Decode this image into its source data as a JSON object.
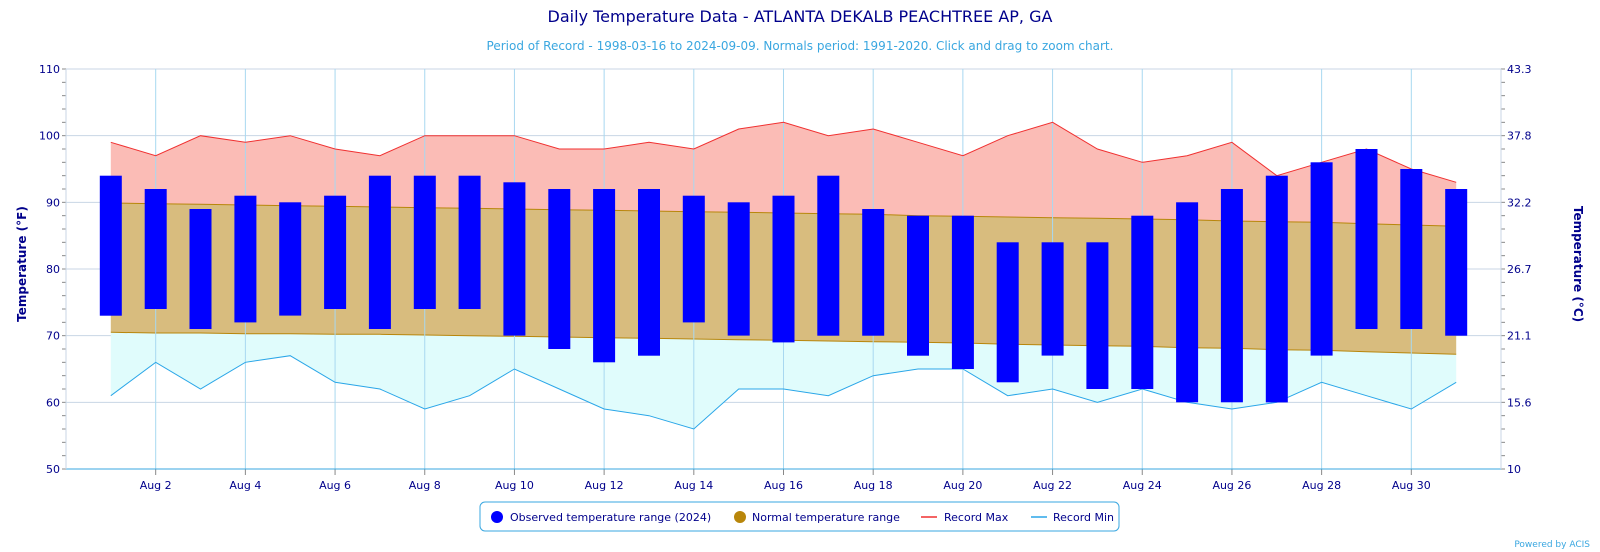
{
  "title": "Daily Temperature Data - ATLANTA DEKALB PEACHTREE AP, GA",
  "subtitle": "Period of Record - 1998-03-16 to 2024-09-09. Normals period: 1991-2020. Click and drag to zoom chart.",
  "credit": "Powered by ACIS",
  "colors": {
    "observed": "#0000ff",
    "normal_fill": "#d8bc7e",
    "normal_line": "#b8860b",
    "record_max_fill": "#fbbcb6",
    "record_max_line": "#f03030",
    "record_min_fill": "#e0fcfc",
    "record_min_line": "#2aa6e8",
    "legend_normal_dot": "#b8860b"
  },
  "chart_data": {
    "type": "bar",
    "x": [
      1,
      2,
      3,
      4,
      5,
      6,
      7,
      8,
      9,
      10,
      11,
      12,
      13,
      14,
      15,
      16,
      17,
      18,
      19,
      20,
      21,
      22,
      23,
      24,
      25,
      26,
      27,
      28,
      29,
      30,
      31
    ],
    "x_tick_labels": [
      "Aug 2",
      "Aug 4",
      "Aug 6",
      "Aug 8",
      "Aug 10",
      "Aug 12",
      "Aug 14",
      "Aug 16",
      "Aug 18",
      "Aug 20",
      "Aug 22",
      "Aug 24",
      "Aug 26",
      "Aug 28",
      "Aug 30"
    ],
    "x_tick_days": [
      2,
      4,
      6,
      8,
      10,
      12,
      14,
      16,
      18,
      20,
      22,
      24,
      26,
      28,
      30
    ],
    "xlim": [
      0,
      32
    ],
    "ylabel": "Temperature (°F)",
    "ylabel_right": "Temperature (°C)",
    "ylim": [
      50,
      110
    ],
    "y_ticks": [
      50,
      60,
      70,
      80,
      90,
      100,
      110
    ],
    "y_right_ticks": [
      "10",
      "15.6",
      "21.1",
      "26.7",
      "32.2",
      "37.8",
      "43.3"
    ],
    "grid": true,
    "legend_position": "bottom-center",
    "series": [
      {
        "name": "Observed temperature range (2024)",
        "type": "columnrange",
        "low": [
          73,
          74,
          71,
          72,
          73,
          74,
          71,
          74,
          74,
          70,
          68,
          66,
          67,
          72,
          70,
          69,
          70,
          70,
          67,
          65,
          63,
          67,
          62,
          62,
          60,
          60,
          60,
          67,
          71,
          71,
          70
        ],
        "high": [
          94,
          92,
          89,
          91,
          90,
          91,
          94,
          94,
          94,
          93,
          92,
          92,
          92,
          91,
          90,
          91,
          94,
          89,
          88,
          88,
          84,
          84,
          84,
          88,
          90,
          92,
          94,
          96,
          98,
          95,
          92
        ]
      },
      {
        "name": "Normal temperature range",
        "type": "arearange",
        "low": [
          70.5,
          70.4,
          70.4,
          70.3,
          70.3,
          70.2,
          70.2,
          70.1,
          70.0,
          69.9,
          69.8,
          69.7,
          69.6,
          69.5,
          69.4,
          69.3,
          69.2,
          69.1,
          69.0,
          68.9,
          68.7,
          68.6,
          68.5,
          68.4,
          68.2,
          68.1,
          67.9,
          67.8,
          67.6,
          67.4,
          67.2
        ],
        "high": [
          89.9,
          89.8,
          89.7,
          89.6,
          89.5,
          89.4,
          89.3,
          89.2,
          89.1,
          89.0,
          88.9,
          88.8,
          88.7,
          88.6,
          88.5,
          88.4,
          88.3,
          88.2,
          88.0,
          87.9,
          87.8,
          87.7,
          87.6,
          87.5,
          87.4,
          87.2,
          87.1,
          87.0,
          86.8,
          86.6,
          86.4
        ]
      },
      {
        "name": "Record Max",
        "type": "line",
        "values": [
          99,
          97,
          100,
          99,
          100,
          98,
          97,
          100,
          100,
          100,
          98,
          98,
          99,
          98,
          101,
          102,
          100,
          101,
          99,
          97,
          100,
          102,
          98,
          96,
          97,
          99,
          94,
          96,
          98,
          95,
          93
        ]
      },
      {
        "name": "Record Min",
        "type": "line",
        "values": [
          61,
          66,
          62,
          66,
          67,
          63,
          62,
          59,
          61,
          65,
          62,
          59,
          58,
          56,
          62,
          62,
          61,
          64,
          65,
          65,
          61,
          62,
          60,
          62,
          60,
          59,
          60,
          63,
          61,
          59,
          63
        ]
      }
    ]
  }
}
